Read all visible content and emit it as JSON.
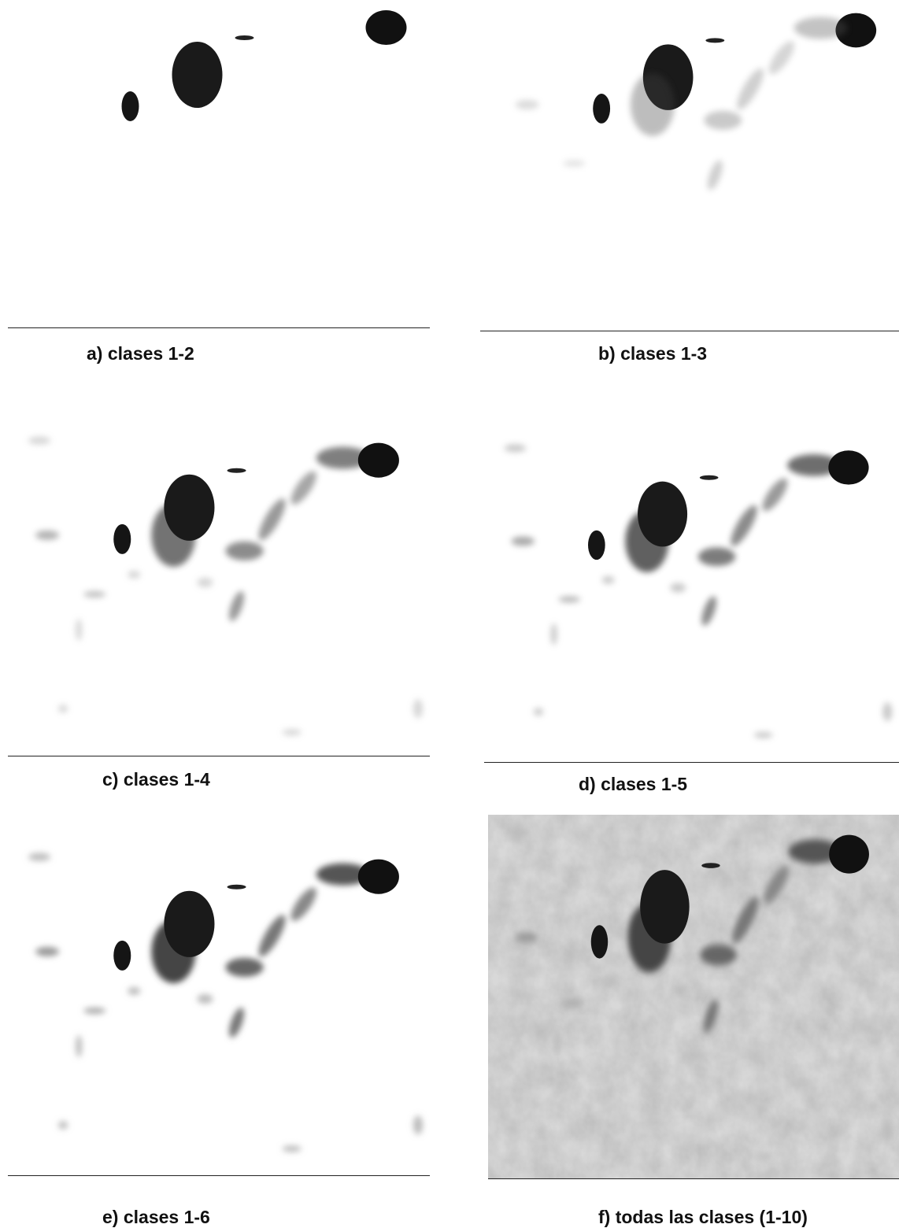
{
  "panels": [
    {
      "caption": "a) clases 1-2"
    },
    {
      "caption": "b) clases 1-3"
    },
    {
      "caption": "c) clases 1-4"
    },
    {
      "caption": "d) clases 1-5"
    },
    {
      "caption": "e) clases 1-6"
    },
    {
      "caption": "f) todas las clases (1-10)"
    }
  ]
}
